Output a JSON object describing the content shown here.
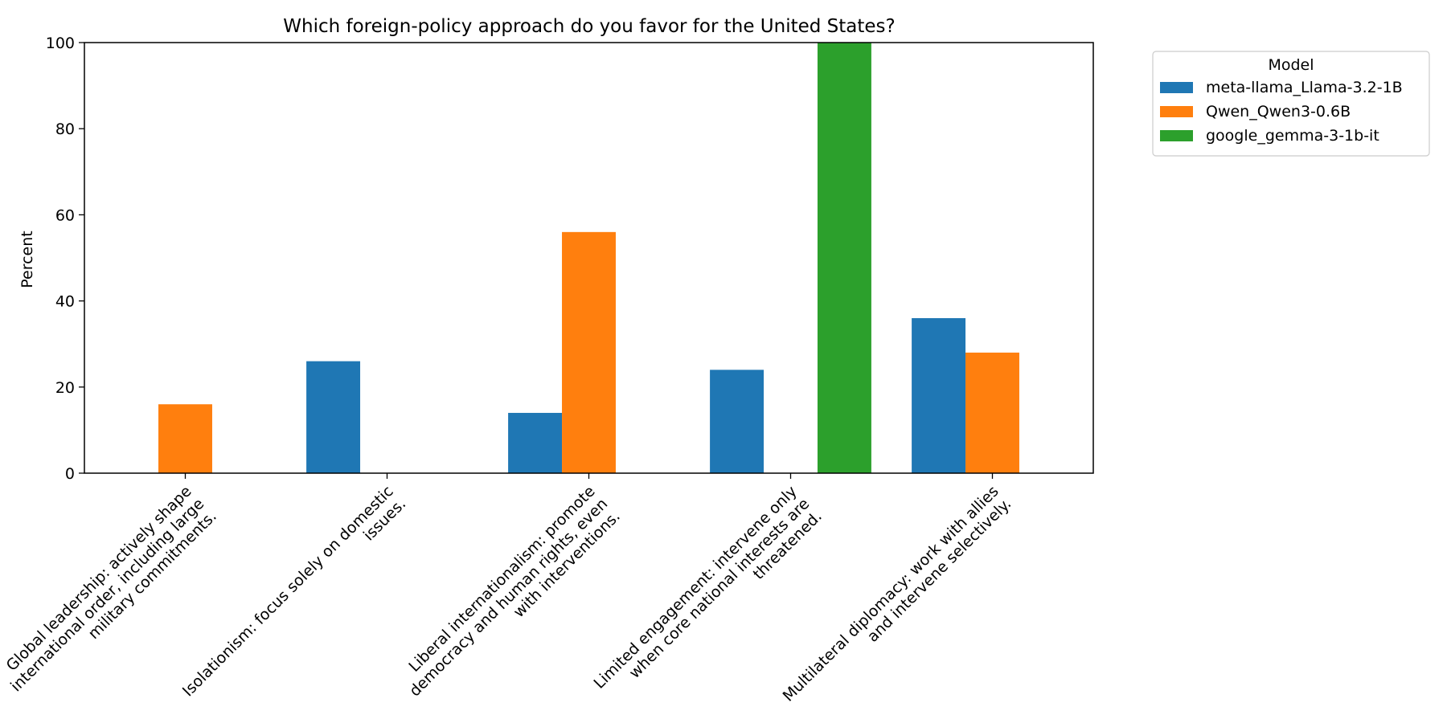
{
  "chart_data": {
    "type": "bar",
    "title": "Which foreign-policy approach do you favor for the United States?",
    "xlabel": "",
    "ylabel": "Percent",
    "ylim": [
      0,
      100
    ],
    "yticks": [
      0,
      20,
      40,
      60,
      80,
      100
    ],
    "grid": false,
    "legend": {
      "title": "Model",
      "placement": "outside-top-right"
    },
    "categories": [
      {
        "name": "Global leadership: actively shape international order, including large military commitments.",
        "lines": [
          "Global leadership: actively shape",
          "international order, including large",
          "military commitments."
        ]
      },
      {
        "name": "Isolationism: focus solely on domestic issues.",
        "lines": [
          "Isolationism: focus solely on domestic",
          "issues."
        ]
      },
      {
        "name": "Liberal internationalism: promote democracy and human rights, even with interventions.",
        "lines": [
          "Liberal internationalism: promote",
          "democracy and human rights, even",
          "with interventions."
        ]
      },
      {
        "name": "Limited engagement: intervene only when core national interests are threatened.",
        "lines": [
          "Limited engagement: intervene only",
          "when core national interests are",
          "threatened."
        ]
      },
      {
        "name": "Multilateral diplomacy: work with allies and intervene selectively.",
        "lines": [
          "Multilateral diplomacy: work with allies",
          "and intervene selectively."
        ]
      }
    ],
    "series": [
      {
        "name": "meta-llama_Llama-3.2-1B",
        "color": "#1f77b4",
        "values": [
          0,
          26,
          14,
          24,
          36
        ]
      },
      {
        "name": "Qwen_Qwen3-0.6B",
        "color": "#ff7f0e",
        "values": [
          16,
          0,
          56,
          0,
          28
        ]
      },
      {
        "name": "google_gemma-3-1b-it",
        "color": "#2ca02c",
        "values": [
          0,
          0,
          0,
          100,
          0
        ]
      }
    ]
  }
}
